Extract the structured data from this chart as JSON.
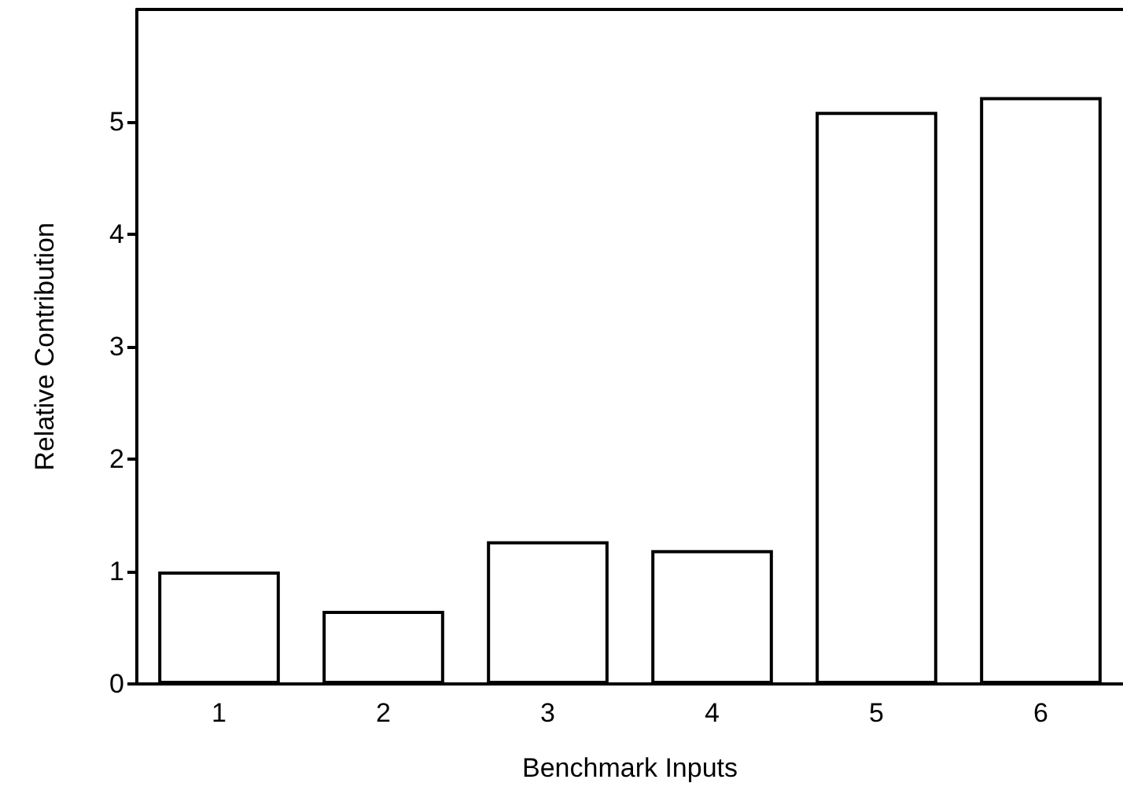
{
  "chart_data": {
    "type": "bar",
    "xlabel": "Benchmark Inputs",
    "ylabel": "Relative Contribution",
    "categories": [
      "1",
      "2",
      "3",
      "4",
      "5",
      "6"
    ],
    "values": [
      1.0,
      0.65,
      1.27,
      1.19,
      5.09,
      5.22
    ],
    "color": "#ffffff",
    "ylim": [
      0,
      6
    ],
    "yticks": [
      0,
      1,
      2,
      3,
      4,
      5
    ]
  }
}
